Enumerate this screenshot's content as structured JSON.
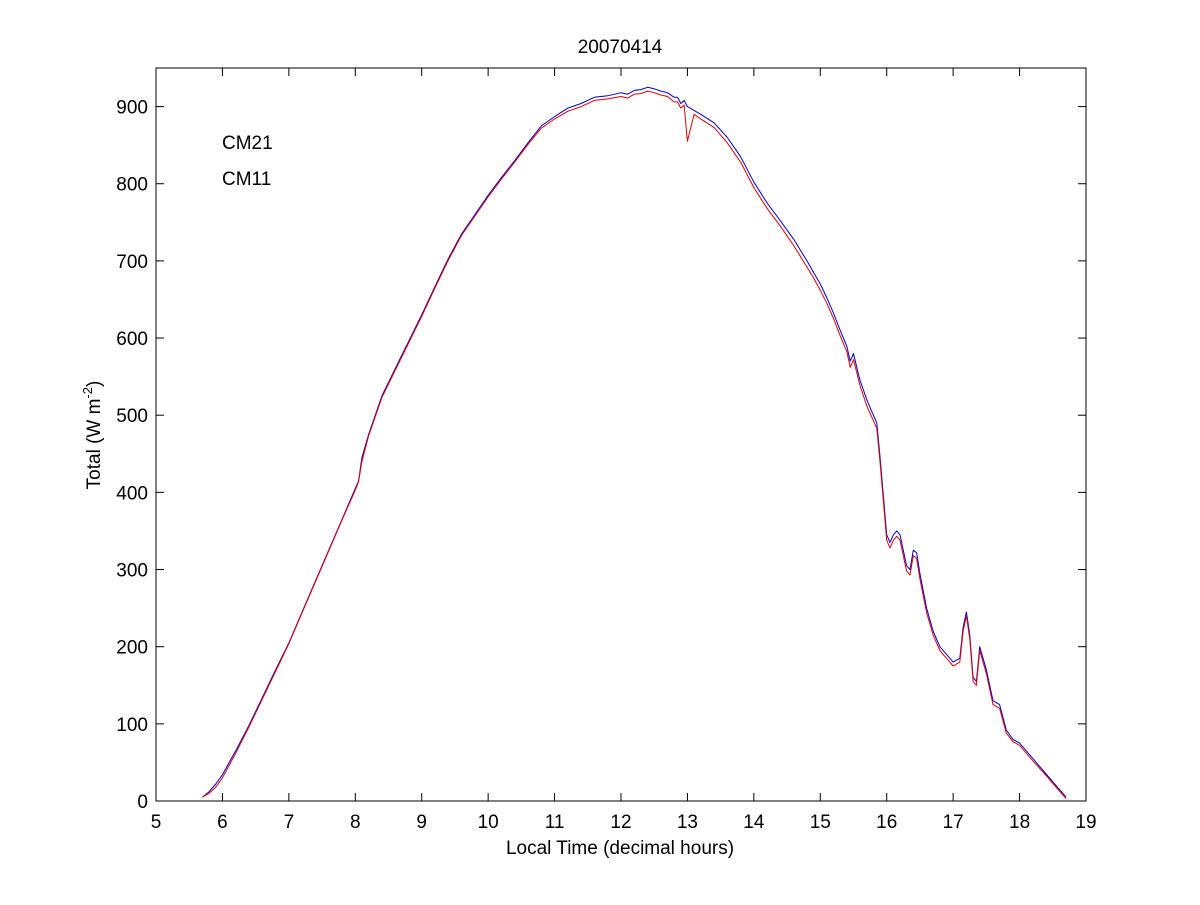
{
  "figure": {
    "background": "#ffffff"
  },
  "chart_data": {
    "type": "line",
    "title": "20070414",
    "xlabel": "Local Time (decimal hours)",
    "ylabel_main": "Total (W m",
    "ylabel_sup": "-2",
    "ylabel_close": ")",
    "xlim": [
      5,
      19
    ],
    "ylim": [
      0,
      950
    ],
    "xticks": [
      5,
      6,
      7,
      8,
      9,
      10,
      11,
      12,
      13,
      14,
      15,
      16,
      17,
      18,
      19
    ],
    "yticks": [
      0,
      100,
      200,
      300,
      400,
      500,
      600,
      700,
      800,
      900
    ],
    "grid": false,
    "legend": {
      "placement": "top-left",
      "style": "colored-text"
    },
    "series": [
      {
        "name": "CM21",
        "color": "#0000cc",
        "x": [
          5.7,
          5.8,
          5.9,
          6.0,
          6.2,
          6.4,
          6.6,
          6.8,
          7.0,
          7.2,
          7.4,
          7.6,
          7.8,
          8.0,
          8.05,
          8.1,
          8.2,
          8.4,
          8.6,
          8.8,
          9.0,
          9.2,
          9.4,
          9.6,
          9.8,
          10.0,
          10.2,
          10.4,
          10.6,
          10.8,
          11.0,
          11.2,
          11.4,
          11.6,
          11.8,
          12.0,
          12.1,
          12.2,
          12.3,
          12.4,
          12.5,
          12.6,
          12.7,
          12.8,
          12.85,
          12.9,
          12.95,
          13.0,
          13.1,
          13.2,
          13.4,
          13.6,
          13.8,
          14.0,
          14.2,
          14.4,
          14.6,
          14.8,
          14.9,
          15.0,
          15.1,
          15.2,
          15.3,
          15.4,
          15.45,
          15.5,
          15.55,
          15.6,
          15.7,
          15.8,
          15.85,
          15.9,
          15.95,
          16.0,
          16.05,
          16.1,
          16.15,
          16.2,
          16.3,
          16.35,
          16.4,
          16.45,
          16.5,
          16.6,
          16.7,
          16.8,
          16.9,
          17.0,
          17.1,
          17.15,
          17.2,
          17.25,
          17.3,
          17.35,
          17.4,
          17.5,
          17.6,
          17.7,
          17.8,
          17.9,
          18.0,
          18.2,
          18.4,
          18.6,
          18.7
        ],
        "y": [
          5,
          12,
          22,
          34,
          65,
          98,
          134,
          170,
          205,
          245,
          285,
          325,
          365,
          405,
          415,
          445,
          475,
          525,
          560,
          595,
          630,
          667,
          703,
          735,
          760,
          785,
          808,
          830,
          853,
          875,
          887,
          898,
          904,
          912,
          914,
          918,
          916,
          921,
          922,
          925,
          923,
          920,
          918,
          912,
          912,
          904,
          908,
          900,
          895,
          890,
          879,
          860,
          835,
          802,
          775,
          752,
          728,
          700,
          685,
          670,
          652,
          632,
          610,
          589,
          570,
          580,
          562,
          545,
          520,
          500,
          490,
          445,
          395,
          345,
          335,
          345,
          350,
          345,
          305,
          300,
          325,
          322,
          295,
          250,
          220,
          200,
          190,
          180,
          185,
          225,
          245,
          215,
          160,
          155,
          200,
          170,
          130,
          125,
          92,
          80,
          75,
          55,
          35,
          15,
          5
        ]
      },
      {
        "name": "CM11",
        "color": "#dd0000",
        "x": [
          5.7,
          5.8,
          5.9,
          6.0,
          6.2,
          6.4,
          6.6,
          6.8,
          7.0,
          7.2,
          7.4,
          7.6,
          7.8,
          8.0,
          8.05,
          8.1,
          8.2,
          8.4,
          8.6,
          8.8,
          9.0,
          9.2,
          9.4,
          9.6,
          9.8,
          10.0,
          10.2,
          10.4,
          10.6,
          10.8,
          11.0,
          11.2,
          11.4,
          11.6,
          11.8,
          12.0,
          12.1,
          12.2,
          12.3,
          12.4,
          12.5,
          12.6,
          12.7,
          12.8,
          12.85,
          12.9,
          12.95,
          13.0,
          13.1,
          13.2,
          13.4,
          13.6,
          13.8,
          14.0,
          14.2,
          14.4,
          14.6,
          14.8,
          14.9,
          15.0,
          15.1,
          15.2,
          15.3,
          15.4,
          15.45,
          15.5,
          15.55,
          15.6,
          15.7,
          15.8,
          15.85,
          15.9,
          15.95,
          16.0,
          16.05,
          16.1,
          16.15,
          16.2,
          16.3,
          16.35,
          16.4,
          16.45,
          16.5,
          16.6,
          16.7,
          16.8,
          16.9,
          17.0,
          17.1,
          17.15,
          17.2,
          17.25,
          17.3,
          17.35,
          17.4,
          17.5,
          17.6,
          17.7,
          17.8,
          17.9,
          18.0,
          18.2,
          18.4,
          18.6,
          18.7
        ],
        "y": [
          5,
          10,
          18,
          30,
          62,
          96,
          132,
          168,
          204,
          244,
          284,
          324,
          364,
          403,
          414,
          440,
          473,
          523,
          558,
          593,
          628,
          665,
          701,
          733,
          758,
          783,
          806,
          828,
          851,
          872,
          884,
          894,
          900,
          908,
          910,
          913,
          911,
          916,
          917,
          920,
          918,
          915,
          913,
          906,
          906,
          898,
          902,
          855,
          890,
          884,
          873,
          853,
          828,
          795,
          768,
          745,
          720,
          692,
          678,
          662,
          645,
          625,
          603,
          582,
          562,
          572,
          555,
          538,
          512,
          493,
          483,
          438,
          388,
          338,
          328,
          338,
          343,
          338,
          298,
          293,
          318,
          315,
          288,
          244,
          215,
          195,
          185,
          175,
          180,
          220,
          240,
          210,
          155,
          150,
          195,
          165,
          125,
          120,
          88,
          77,
          72,
          52,
          33,
          13,
          3
        ]
      }
    ]
  }
}
